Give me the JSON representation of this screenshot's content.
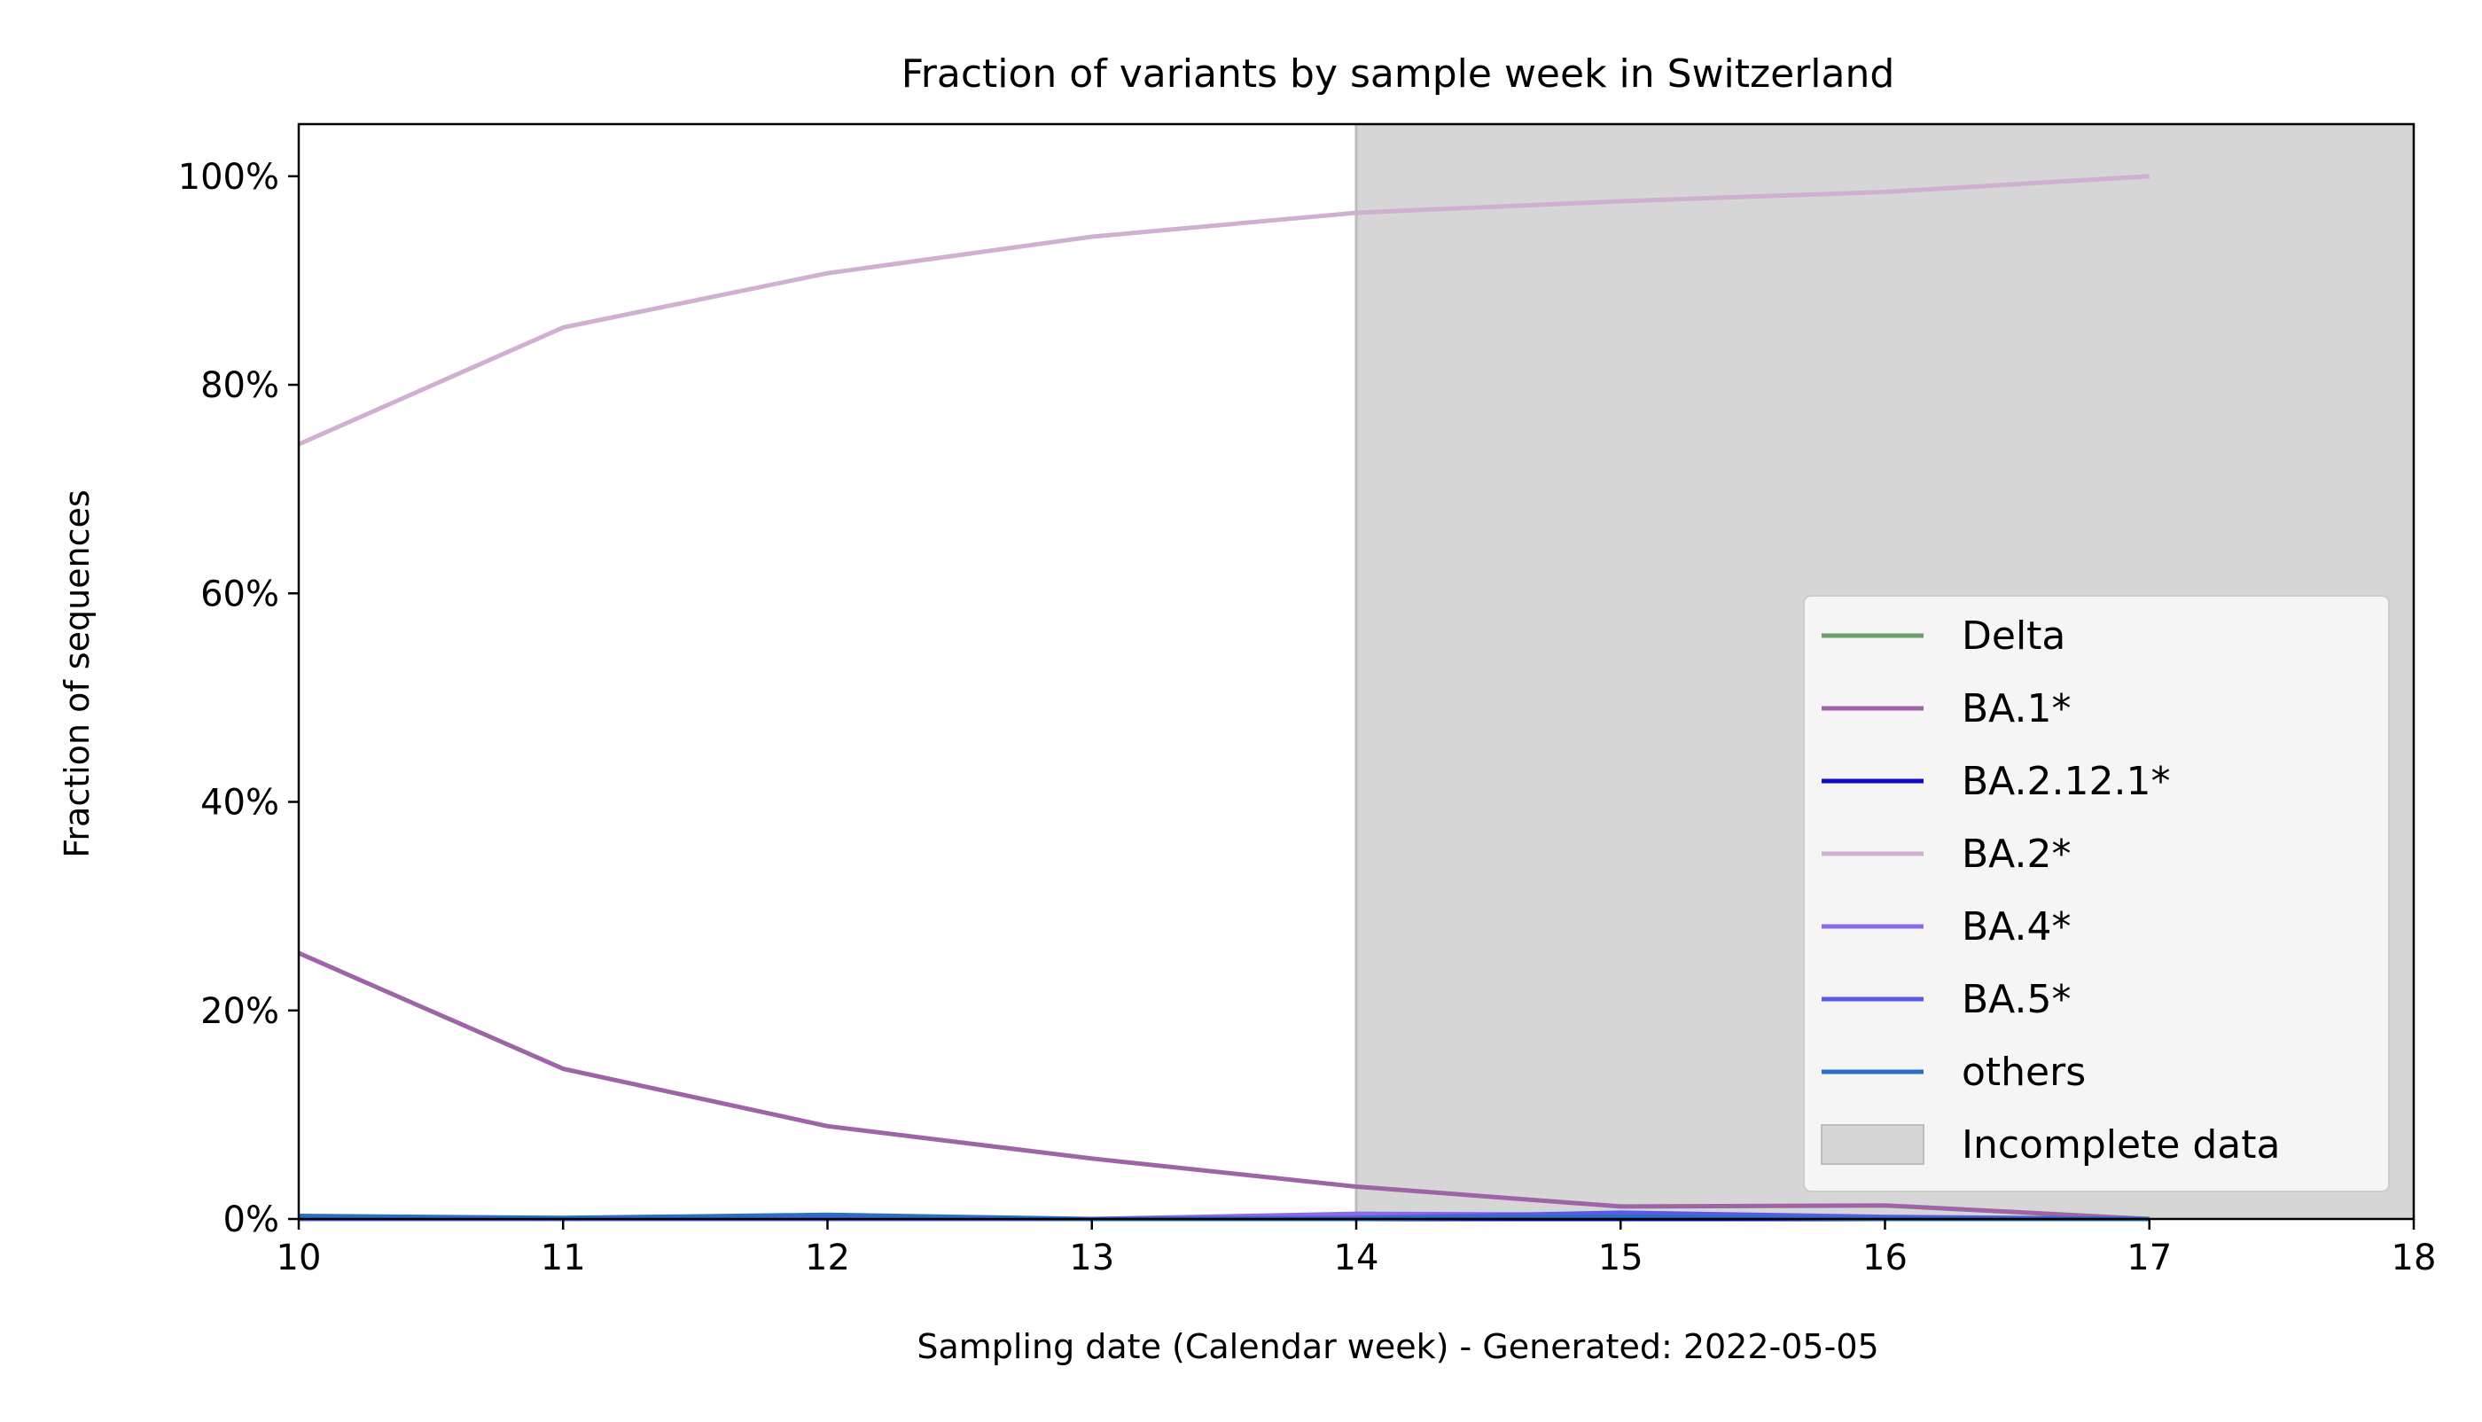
{
  "chart_data": {
    "type": "line",
    "title": "Fraction of variants by sample week in Switzerland",
    "xlabel": "Sampling date (Calendar week) - Generated: 2022-05-05",
    "ylabel": "Fraction of sequences",
    "xlim": [
      10,
      18
    ],
    "ylim": [
      0,
      1.05
    ],
    "x_ticks": [
      10,
      11,
      12,
      13,
      14,
      15,
      16,
      17,
      18
    ],
    "x_tick_labels": [
      "10",
      "11",
      "12",
      "13",
      "14",
      "15",
      "16",
      "17",
      "18"
    ],
    "y_ticks": [
      0,
      0.2,
      0.4,
      0.6,
      0.8,
      1.0
    ],
    "y_tick_labels": [
      "0%",
      "20%",
      "40%",
      "60%",
      "80%",
      "100%"
    ],
    "grid": false,
    "legend_position": "lower-right",
    "incomplete_region": {
      "x_start": 14,
      "x_end": 18,
      "label": "Incomplete data",
      "color": "#d6d6d6"
    },
    "series": [
      {
        "name": "Delta",
        "color": "#6a9f6a",
        "x": [
          10,
          11,
          12,
          13,
          14,
          15,
          16,
          17
        ],
        "values": [
          0.0,
          0.0,
          0.0,
          0.0,
          0.0,
          0.0,
          0.0,
          0.0
        ]
      },
      {
        "name": "BA.1*",
        "color": "#9e65a6",
        "x": [
          10,
          11,
          12,
          13,
          14,
          15,
          16,
          17
        ],
        "values": [
          0.255,
          0.144,
          0.089,
          0.058,
          0.031,
          0.012,
          0.013,
          0.0
        ]
      },
      {
        "name": "BA.2.12.1*",
        "color": "#0b0bc8",
        "x": [
          10,
          11,
          12,
          13,
          14,
          15,
          16,
          17
        ],
        "values": [
          0.0,
          0.0,
          0.0,
          0.0,
          0.0,
          0.0,
          0.0,
          0.0
        ]
      },
      {
        "name": "BA.2*",
        "color": "#d0afd0",
        "x": [
          10,
          11,
          12,
          13,
          14,
          15,
          16,
          17
        ],
        "values": [
          0.743,
          0.855,
          0.907,
          0.942,
          0.965,
          0.976,
          0.985,
          1.0
        ]
      },
      {
        "name": "BA.4*",
        "color": "#8a6ae8",
        "x": [
          10,
          11,
          12,
          13,
          14,
          15,
          16,
          17
        ],
        "values": [
          0.0,
          0.0,
          0.0,
          0.0,
          0.005,
          0.004,
          0.001,
          0.0
        ]
      },
      {
        "name": "BA.5*",
        "color": "#5a5ae8",
        "x": [
          10,
          11,
          12,
          13,
          14,
          15,
          16,
          17
        ],
        "values": [
          0.0,
          0.0,
          0.0,
          0.0,
          0.001,
          0.006,
          0.002,
          0.0
        ]
      },
      {
        "name": "others",
        "color": "#2a6fc2",
        "x": [
          10,
          11,
          12,
          13,
          14,
          15,
          16,
          17
        ],
        "values": [
          0.003,
          0.001,
          0.004,
          0.0,
          0.0,
          0.002,
          0.0,
          0.0
        ]
      }
    ]
  }
}
